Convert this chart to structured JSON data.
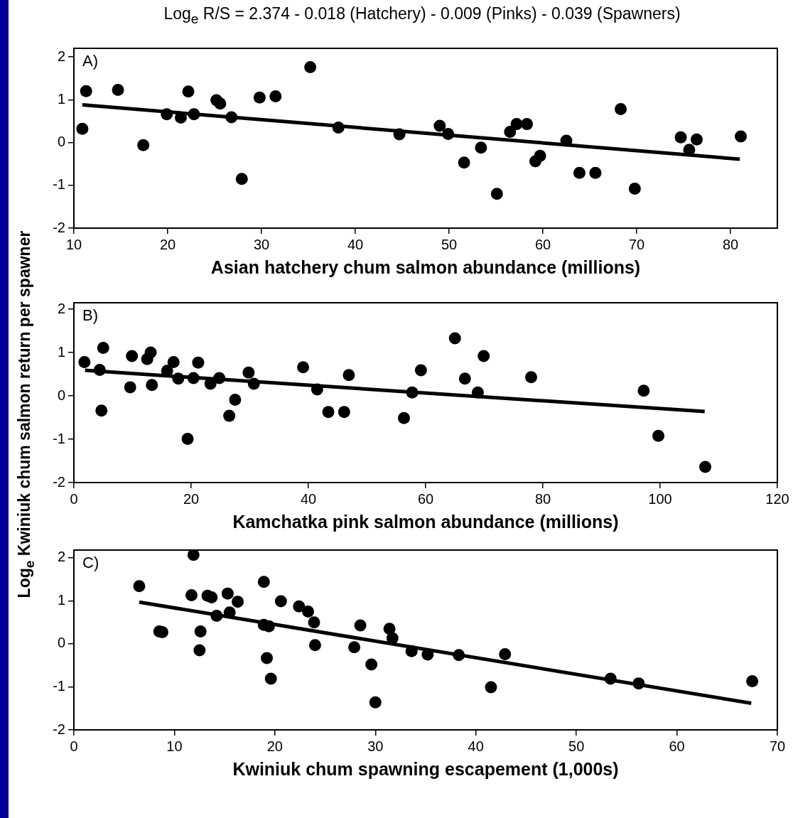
{
  "chart_data": [
    {
      "type": "scatter",
      "title": "Log$_{e}$ R/S = 2.374 - 0.018 (Hatchery) - 0.009 (Pinks) - 0.039 (Spawners)",
      "xlabel": "Asian hatchery chum salmon abundance (millions)",
      "annotations": [
        "A)"
      ],
      "xlim": [
        10,
        85
      ],
      "xticks": [
        10,
        20,
        30,
        40,
        50,
        60,
        70,
        80
      ],
      "ylim": [
        -2,
        2.2
      ],
      "yticks": [
        -2,
        -1,
        0,
        1,
        2
      ],
      "grid": false,
      "legend": false,
      "series": [
        {
          "marker": "circle",
          "color": "#000000",
          "x": [
            10.9,
            11.3,
            14.7,
            17.4,
            19.9,
            21.4,
            22.2,
            22.8,
            25.2,
            25.6,
            26.8,
            27.9,
            29.8,
            31.5,
            35.2,
            38.2,
            44.7,
            49.0,
            49.9,
            51.6,
            53.4,
            55.1,
            56.5,
            57.2,
            58.3,
            59.2,
            59.7,
            62.5,
            63.9,
            65.6,
            68.3,
            69.8,
            74.7,
            75.6,
            76.4,
            81.1
          ],
          "values": [
            0.32,
            1.2,
            1.23,
            -0.06,
            0.66,
            0.58,
            1.19,
            0.66,
            0.99,
            0.91,
            0.59,
            -0.85,
            1.05,
            1.08,
            1.76,
            0.35,
            0.19,
            0.39,
            0.2,
            -0.47,
            -0.12,
            -1.2,
            0.25,
            0.43,
            0.43,
            -0.44,
            -0.31,
            0.04,
            -0.71,
            -0.71,
            0.78,
            -1.08,
            0.12,
            -0.17,
            0.07,
            0.14
          ]
        },
        {
          "type": "line",
          "marker": "none",
          "color": "#000000",
          "x": [
            10.9,
            81.0
          ],
          "values": [
            0.88,
            -0.39
          ]
        }
      ]
    },
    {
      "type": "scatter",
      "xlabel": "Kamchatka pink salmon abundance (millions)",
      "ylabel": "Log$_{e}$ Kwiniuk chum salmon return per spawner",
      "annotations": [
        "B)"
      ],
      "xlim": [
        0,
        120
      ],
      "xticks": [
        0,
        20,
        40,
        60,
        80,
        100,
        120
      ],
      "ylim": [
        -2,
        2.15
      ],
      "yticks": [
        -2,
        -1,
        0,
        1,
        2
      ],
      "grid": false,
      "legend": false,
      "series": [
        {
          "marker": "circle",
          "color": "#000000",
          "x": [
            1.8,
            4.4,
            5.0,
            4.7,
            9.9,
            9.6,
            12.5,
            13.1,
            13.3,
            15.9,
            17.0,
            17.8,
            19.4,
            20.4,
            21.2,
            23.3,
            24.8,
            26.5,
            27.5,
            29.8,
            30.7,
            39.1,
            41.5,
            43.4,
            46.1,
            46.9,
            56.3,
            57.7,
            59.2,
            65.0,
            69.9,
            66.7,
            68.9,
            78.0,
            97.2,
            99.7,
            107.7
          ],
          "values": [
            0.78,
            0.6,
            1.11,
            -0.34,
            0.92,
            0.2,
            0.85,
            1.0,
            0.25,
            0.58,
            0.78,
            0.4,
            -0.99,
            0.41,
            0.77,
            0.28,
            0.41,
            -0.46,
            -0.09,
            0.54,
            0.28,
            0.66,
            0.15,
            -0.37,
            -0.37,
            0.48,
            -0.51,
            0.08,
            0.59,
            1.33,
            0.92,
            0.4,
            0.08,
            0.43,
            0.12,
            -0.92,
            -1.64
          ]
        },
        {
          "type": "line",
          "marker": "none",
          "color": "#000000",
          "x": [
            1.9,
            107.6
          ],
          "values": [
            0.59,
            -0.36
          ]
        }
      ]
    },
    {
      "type": "scatter",
      "xlabel": "Kwiniuk chum spawning escapement (1,000s)",
      "annotations": [
        "C)"
      ],
      "xlim": [
        0,
        70
      ],
      "xticks": [
        0,
        10,
        20,
        30,
        40,
        50,
        60,
        70
      ],
      "ylim": [
        -2,
        2.18
      ],
      "yticks": [
        -2,
        -1,
        0,
        1,
        2
      ],
      "grid": false,
      "legend": false,
      "series": [
        {
          "marker": "circle",
          "color": "#000000",
          "x": [
            6.5,
            11.9,
            8.5,
            8.8,
            11.7,
            12.6,
            12.5,
            13.3,
            13.7,
            14.2,
            15.3,
            15.5,
            16.3,
            18.9,
            18.9,
            19.4,
            19.2,
            19.6,
            20.6,
            22.4,
            23.3,
            23.9,
            24.0,
            27.9,
            28.5,
            29.6,
            30.0,
            31.4,
            31.7,
            33.6,
            35.2,
            38.3,
            42.9,
            41.5,
            53.4,
            56.2,
            67.5
          ],
          "values": [
            1.34,
            2.07,
            0.29,
            0.27,
            1.13,
            0.29,
            -0.15,
            1.12,
            1.08,
            0.65,
            1.17,
            0.73,
            0.98,
            1.44,
            0.44,
            0.41,
            -0.33,
            -0.81,
            0.99,
            0.87,
            0.75,
            0.5,
            -0.03,
            -0.08,
            0.43,
            -0.48,
            -1.36,
            0.35,
            0.13,
            -0.17,
            -0.25,
            -0.26,
            -0.24,
            -1.01,
            -0.81,
            -0.92,
            -0.87
          ]
        },
        {
          "type": "line",
          "marker": "none",
          "color": "#000000",
          "x": [
            6.5,
            67.4
          ],
          "values": [
            0.97,
            -1.38
          ]
        }
      ]
    }
  ]
}
